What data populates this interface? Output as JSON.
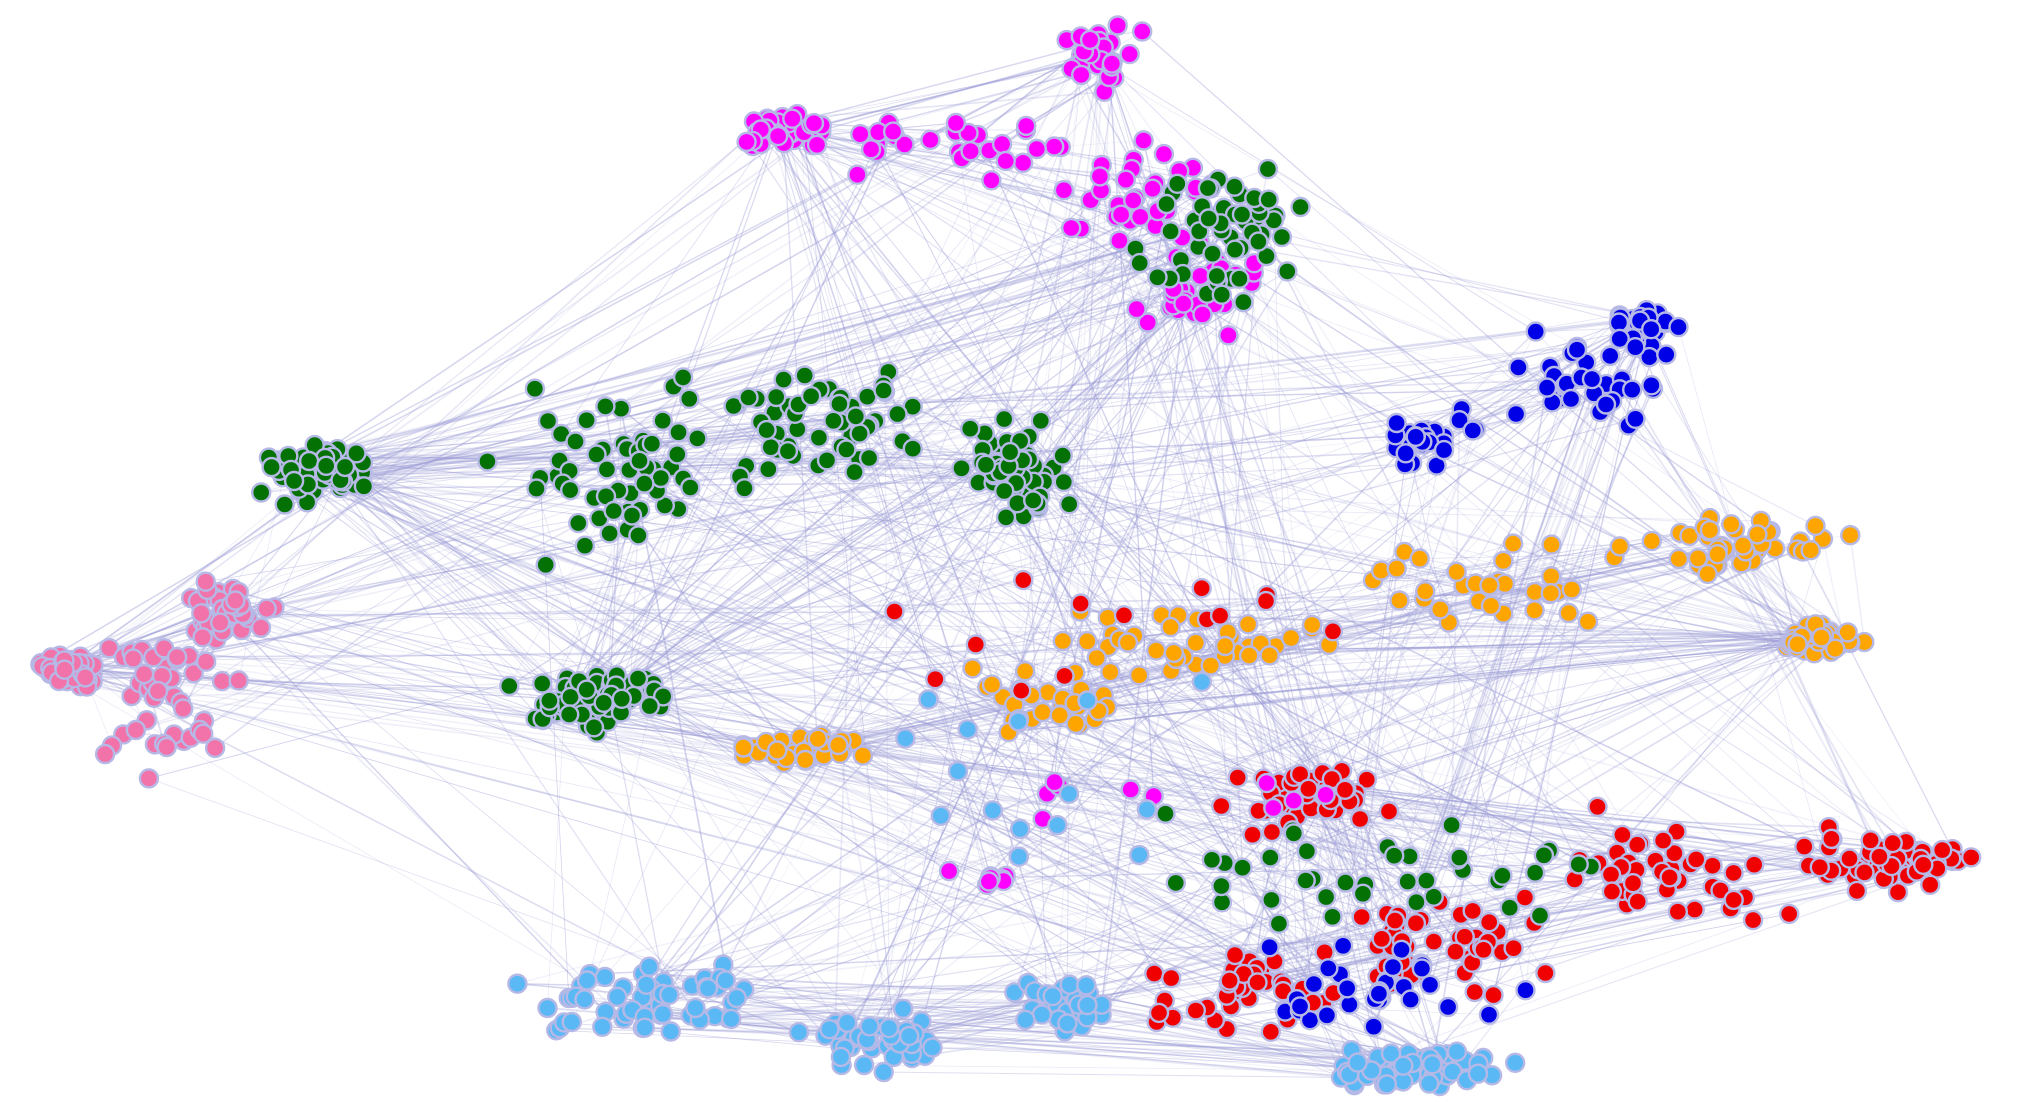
{
  "graph": {
    "type": "network",
    "node_fill_stroke": "#b6b8e6",
    "edge_color": "#9a9ad6",
    "communities": [
      {
        "id": "magenta-cluster",
        "color": "#ff00ff"
      },
      {
        "id": "dark-green-cluster",
        "color": "#037103"
      },
      {
        "id": "pink-cluster",
        "color": "#f272aa"
      },
      {
        "id": "blue-cluster",
        "color": "#0000e6"
      },
      {
        "id": "orange-cluster",
        "color": "#ffa500"
      },
      {
        "id": "red-cluster",
        "color": "#f00000"
      },
      {
        "id": "light-blue-cluster",
        "color": "#5ab9f5"
      }
    ]
  }
}
